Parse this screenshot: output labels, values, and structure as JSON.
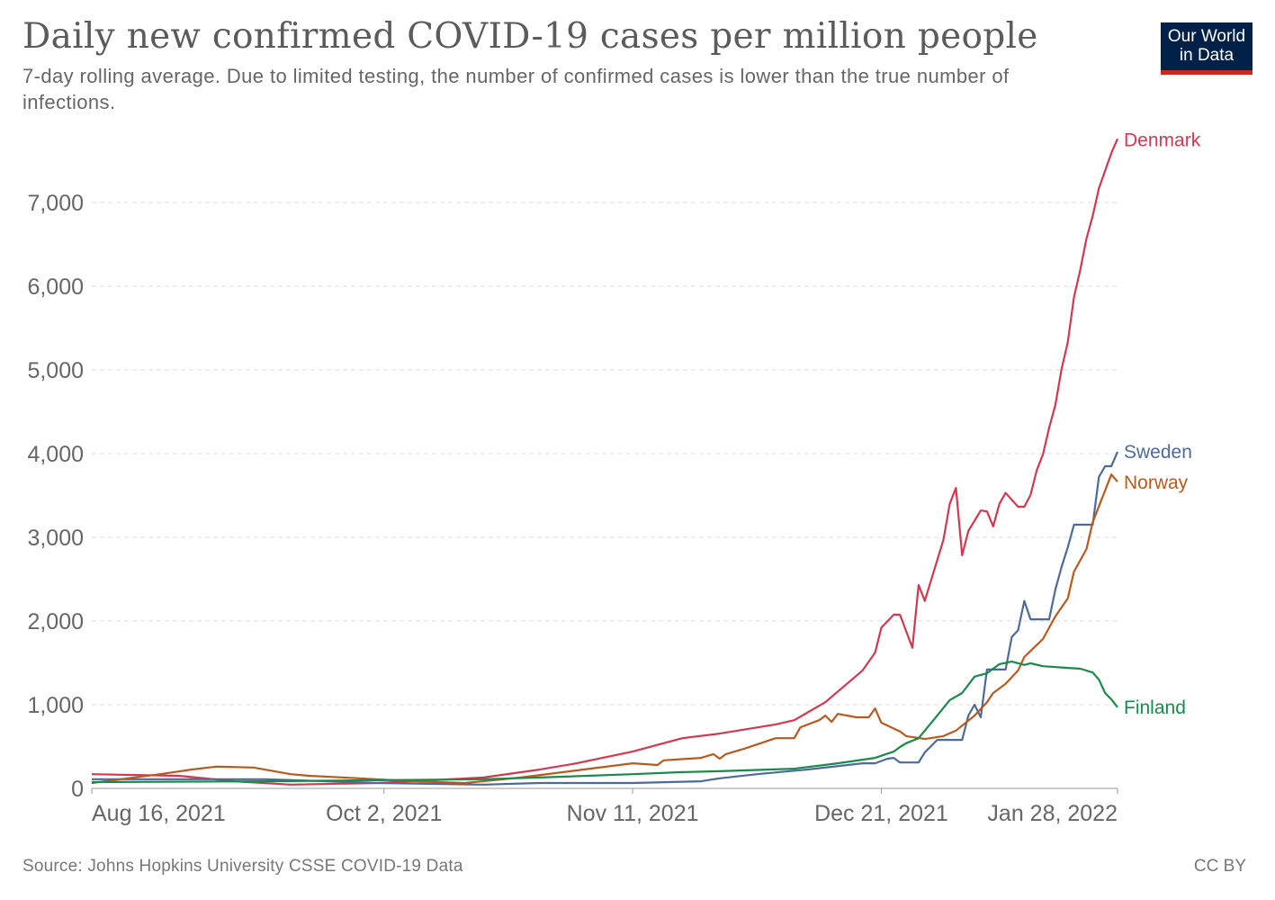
{
  "header": {
    "title": "Daily new confirmed COVID-19 cases per million people",
    "subtitle": "7-day rolling average. Due to limited testing, the number of confirmed cases is lower than the true number of infections.",
    "logo_line1": "Our World",
    "logo_line2": "in Data"
  },
  "footer": {
    "source": "Source: Johns Hopkins University CSSE COVID-19 Data",
    "license": "CC BY"
  },
  "chart_data": {
    "type": "line",
    "title": "Daily new confirmed COVID-19 cases per million people",
    "xlabel": "",
    "ylabel": "",
    "xlim": [
      "2021-08-16",
      "2022-01-28"
    ],
    "ylim": [
      0,
      7800
    ],
    "grid": "horizontal dashed",
    "legend": "inline labels at line ends (right)",
    "x_ticks": [
      {
        "date": "2021-08-16",
        "label": "Aug 16, 2021"
      },
      {
        "date": "2021-10-02",
        "label": "Oct 2, 2021"
      },
      {
        "date": "2021-11-11",
        "label": "Nov 11, 2021"
      },
      {
        "date": "2021-12-21",
        "label": "Dec 21, 2021"
      },
      {
        "date": "2022-01-28",
        "label": "Jan 28, 2022"
      }
    ],
    "y_ticks": [
      {
        "value": 0,
        "label": "0"
      },
      {
        "value": 1000,
        "label": "1,000"
      },
      {
        "value": 2000,
        "label": "2,000"
      },
      {
        "value": 3000,
        "label": "3,000"
      },
      {
        "value": 4000,
        "label": "4,000"
      },
      {
        "value": 5000,
        "label": "5,000"
      },
      {
        "value": 6000,
        "label": "6,000"
      },
      {
        "value": 7000,
        "label": "7,000"
      }
    ],
    "series": [
      {
        "name": "Denmark",
        "color": "#d0394f",
        "points": [
          [
            "2021-08-16",
            170
          ],
          [
            "2021-08-30",
            150
          ],
          [
            "2021-09-08",
            85
          ],
          [
            "2021-09-17",
            45
          ],
          [
            "2021-10-01",
            65
          ],
          [
            "2021-10-18",
            130
          ],
          [
            "2021-10-27",
            225
          ],
          [
            "2021-11-02",
            300
          ],
          [
            "2021-11-11",
            440
          ],
          [
            "2021-11-19",
            600
          ],
          [
            "2021-11-25",
            655
          ],
          [
            "2021-12-04",
            765
          ],
          [
            "2021-12-07",
            815
          ],
          [
            "2021-12-12",
            1030
          ],
          [
            "2021-12-18",
            1410
          ],
          [
            "2021-12-20",
            1620
          ],
          [
            "2021-12-21",
            1920
          ],
          [
            "2021-12-23",
            2075
          ],
          [
            "2021-12-24",
            2075
          ],
          [
            "2021-12-26",
            1680
          ],
          [
            "2021-12-27",
            2430
          ],
          [
            "2021-12-28",
            2240
          ],
          [
            "2021-12-31",
            2970
          ],
          [
            "2022-01-01",
            3400
          ],
          [
            "2022-01-02",
            3590
          ],
          [
            "2022-01-03",
            2785
          ],
          [
            "2022-01-04",
            3075
          ],
          [
            "2022-01-06",
            3320
          ],
          [
            "2022-01-07",
            3310
          ],
          [
            "2022-01-08",
            3130
          ],
          [
            "2022-01-09",
            3400
          ],
          [
            "2022-01-10",
            3530
          ],
          [
            "2022-01-12",
            3365
          ],
          [
            "2022-01-13",
            3365
          ],
          [
            "2022-01-14",
            3505
          ],
          [
            "2022-01-15",
            3800
          ],
          [
            "2022-01-16",
            3990
          ],
          [
            "2022-01-17",
            4310
          ],
          [
            "2022-01-18",
            4580
          ],
          [
            "2022-01-19",
            5010
          ],
          [
            "2022-01-20",
            5330
          ],
          [
            "2022-01-21",
            5870
          ],
          [
            "2022-01-22",
            6190
          ],
          [
            "2022-01-23",
            6570
          ],
          [
            "2022-01-24",
            6840
          ],
          [
            "2022-01-25",
            7170
          ],
          [
            "2022-01-26",
            7380
          ],
          [
            "2022-01-27",
            7590
          ],
          [
            "2022-01-28",
            7760
          ]
        ]
      },
      {
        "name": "Sweden",
        "color": "#4c6a9c",
        "points": [
          [
            "2021-08-16",
            110
          ],
          [
            "2021-09-13",
            110
          ],
          [
            "2021-10-01",
            65
          ],
          [
            "2021-10-18",
            45
          ],
          [
            "2021-10-27",
            65
          ],
          [
            "2021-11-11",
            65
          ],
          [
            "2021-11-22",
            85
          ],
          [
            "2021-11-25",
            120
          ],
          [
            "2021-12-01",
            170
          ],
          [
            "2021-12-09",
            225
          ],
          [
            "2021-12-18",
            300
          ],
          [
            "2021-12-20",
            300
          ],
          [
            "2021-12-22",
            355
          ],
          [
            "2021-12-23",
            365
          ],
          [
            "2021-12-24",
            310
          ],
          [
            "2021-12-27",
            310
          ],
          [
            "2021-12-28",
            430
          ],
          [
            "2021-12-30",
            580
          ],
          [
            "2022-01-03",
            580
          ],
          [
            "2022-01-04",
            870
          ],
          [
            "2022-01-05",
            1000
          ],
          [
            "2022-01-06",
            850
          ],
          [
            "2022-01-07",
            1420
          ],
          [
            "2022-01-10",
            1420
          ],
          [
            "2022-01-11",
            1810
          ],
          [
            "2022-01-12",
            1890
          ],
          [
            "2022-01-13",
            2240
          ],
          [
            "2022-01-14",
            2020
          ],
          [
            "2022-01-17",
            2020
          ],
          [
            "2022-01-18",
            2375
          ],
          [
            "2022-01-19",
            2645
          ],
          [
            "2022-01-20",
            2880
          ],
          [
            "2022-01-21",
            3150
          ],
          [
            "2022-01-24",
            3150
          ],
          [
            "2022-01-25",
            3720
          ],
          [
            "2022-01-26",
            3850
          ],
          [
            "2022-01-27",
            3850
          ],
          [
            "2022-01-28",
            4020
          ]
        ]
      },
      {
        "name": "Norway",
        "color": "#b85a1f",
        "points": [
          [
            "2021-08-16",
            65
          ],
          [
            "2021-08-27",
            170
          ],
          [
            "2021-09-01",
            225
          ],
          [
            "2021-09-05",
            260
          ],
          [
            "2021-09-11",
            250
          ],
          [
            "2021-09-17",
            170
          ],
          [
            "2021-09-20",
            150
          ],
          [
            "2021-09-28",
            120
          ],
          [
            "2021-10-07",
            85
          ],
          [
            "2021-10-15",
            65
          ],
          [
            "2021-10-24",
            130
          ],
          [
            "2021-11-02",
            215
          ],
          [
            "2021-11-11",
            300
          ],
          [
            "2021-11-15",
            280
          ],
          [
            "2021-11-16",
            335
          ],
          [
            "2021-11-22",
            365
          ],
          [
            "2021-11-24",
            410
          ],
          [
            "2021-11-25",
            355
          ],
          [
            "2021-11-26",
            410
          ],
          [
            "2021-11-29",
            475
          ],
          [
            "2021-12-04",
            600
          ],
          [
            "2021-12-07",
            600
          ],
          [
            "2021-12-08",
            730
          ],
          [
            "2021-12-11",
            815
          ],
          [
            "2021-12-12",
            870
          ],
          [
            "2021-12-13",
            795
          ],
          [
            "2021-12-14",
            890
          ],
          [
            "2021-12-17",
            850
          ],
          [
            "2021-12-19",
            850
          ],
          [
            "2021-12-20",
            955
          ],
          [
            "2021-12-21",
            785
          ],
          [
            "2021-12-22",
            750
          ],
          [
            "2021-12-24",
            680
          ],
          [
            "2021-12-25",
            625
          ],
          [
            "2021-12-28",
            590
          ],
          [
            "2021-12-31",
            625
          ],
          [
            "2022-01-02",
            690
          ],
          [
            "2022-01-05",
            870
          ],
          [
            "2022-01-07",
            1030
          ],
          [
            "2022-01-08",
            1140
          ],
          [
            "2022-01-10",
            1250
          ],
          [
            "2022-01-12",
            1410
          ],
          [
            "2022-01-13",
            1570
          ],
          [
            "2022-01-16",
            1785
          ],
          [
            "2022-01-18",
            2055
          ],
          [
            "2022-01-20",
            2270
          ],
          [
            "2022-01-21",
            2590
          ],
          [
            "2022-01-23",
            2860
          ],
          [
            "2022-01-24",
            3180
          ],
          [
            "2022-01-26",
            3560
          ],
          [
            "2022-01-27",
            3750
          ],
          [
            "2022-01-28",
            3665
          ]
        ]
      },
      {
        "name": "Finland",
        "color": "#1a8a4a",
        "points": [
          [
            "2021-08-16",
            75
          ],
          [
            "2021-09-13",
            85
          ],
          [
            "2021-10-18",
            110
          ],
          [
            "2021-10-27",
            130
          ],
          [
            "2021-11-11",
            170
          ],
          [
            "2021-11-19",
            195
          ],
          [
            "2021-11-25",
            205
          ],
          [
            "2021-12-07",
            235
          ],
          [
            "2021-12-14",
            300
          ],
          [
            "2021-12-20",
            365
          ],
          [
            "2021-12-23",
            440
          ],
          [
            "2021-12-24",
            495
          ],
          [
            "2021-12-25",
            540
          ],
          [
            "2021-12-27",
            600
          ],
          [
            "2021-12-30",
            870
          ],
          [
            "2022-01-01",
            1055
          ],
          [
            "2022-01-03",
            1140
          ],
          [
            "2022-01-05",
            1335
          ],
          [
            "2022-01-07",
            1375
          ],
          [
            "2022-01-09",
            1485
          ],
          [
            "2022-01-11",
            1515
          ],
          [
            "2022-01-13",
            1475
          ],
          [
            "2022-01-14",
            1495
          ],
          [
            "2022-01-16",
            1460
          ],
          [
            "2022-01-20",
            1440
          ],
          [
            "2022-01-22",
            1430
          ],
          [
            "2022-01-24",
            1385
          ],
          [
            "2022-01-25",
            1300
          ],
          [
            "2022-01-26",
            1140
          ],
          [
            "2022-01-27",
            1065
          ],
          [
            "2022-01-28",
            970
          ]
        ]
      }
    ]
  }
}
